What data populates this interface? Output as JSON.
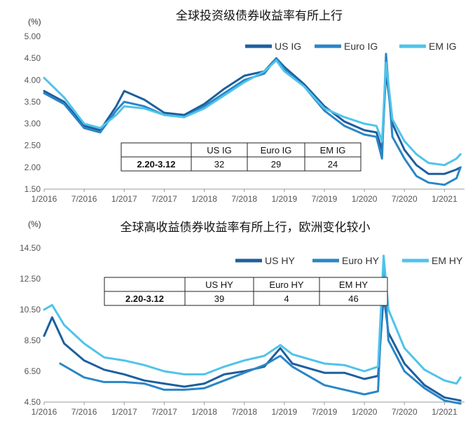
{
  "chart_data": [
    {
      "type": "line",
      "title": "全球投资级债券收益率有所上行",
      "unit_label": "(%)",
      "xlabel": "",
      "ylabel": "",
      "x_ticks": [
        "1/2016",
        "7/2016",
        "1/2017",
        "7/2017",
        "1/2018",
        "7/2018",
        "1/2019",
        "7/2019",
        "1/2020",
        "7/2020",
        "1/2021"
      ],
      "y_ticks": [
        "5.00",
        "4.50",
        "4.00",
        "3.50",
        "3.00",
        "2.50",
        "2.00",
        "1.50"
      ],
      "ylim": [
        1.5,
        5.0
      ],
      "legend_position": "top-right",
      "colors": {
        "US IG": "#1d5f9e",
        "Euro IG": "#2a86c6",
        "EM IG": "#4fc3ea"
      },
      "series": [
        {
          "name": "US IG",
          "values": [
            [
              2016.0,
              3.75
            ],
            [
              2016.25,
              3.5
            ],
            [
              2016.5,
              2.95
            ],
            [
              2016.7,
              2.85
            ],
            [
              2016.9,
              3.4
            ],
            [
              2017.0,
              3.75
            ],
            [
              2017.25,
              3.55
            ],
            [
              2017.5,
              3.25
            ],
            [
              2017.75,
              3.2
            ],
            [
              2018.0,
              3.45
            ],
            [
              2018.25,
              3.8
            ],
            [
              2018.5,
              4.1
            ],
            [
              2018.75,
              4.2
            ],
            [
              2018.9,
              4.5
            ],
            [
              2019.0,
              4.3
            ],
            [
              2019.25,
              3.9
            ],
            [
              2019.5,
              3.4
            ],
            [
              2019.75,
              3.05
            ],
            [
              2020.0,
              2.85
            ],
            [
              2020.15,
              2.8
            ],
            [
              2020.22,
              2.4
            ],
            [
              2020.27,
              4.2
            ],
            [
              2020.35,
              3.0
            ],
            [
              2020.5,
              2.4
            ],
            [
              2020.65,
              2.05
            ],
            [
              2020.8,
              1.85
            ],
            [
              2021.0,
              1.85
            ],
            [
              2021.15,
              1.95
            ],
            [
              2021.2,
              2.0
            ]
          ]
        },
        {
          "name": "Euro IG",
          "values": [
            [
              2016.0,
              3.7
            ],
            [
              2016.25,
              3.45
            ],
            [
              2016.5,
              2.9
            ],
            [
              2016.7,
              2.8
            ],
            [
              2016.9,
              3.3
            ],
            [
              2017.0,
              3.5
            ],
            [
              2017.25,
              3.4
            ],
            [
              2017.5,
              3.2
            ],
            [
              2017.75,
              3.15
            ],
            [
              2018.0,
              3.4
            ],
            [
              2018.25,
              3.7
            ],
            [
              2018.5,
              4.0
            ],
            [
              2018.75,
              4.15
            ],
            [
              2018.9,
              4.5
            ],
            [
              2019.0,
              4.25
            ],
            [
              2019.25,
              3.85
            ],
            [
              2019.5,
              3.3
            ],
            [
              2019.75,
              2.95
            ],
            [
              2020.0,
              2.75
            ],
            [
              2020.15,
              2.7
            ],
            [
              2020.22,
              2.2
            ],
            [
              2020.27,
              4.6
            ],
            [
              2020.35,
              2.7
            ],
            [
              2020.5,
              2.2
            ],
            [
              2020.65,
              1.8
            ],
            [
              2020.8,
              1.65
            ],
            [
              2021.0,
              1.6
            ],
            [
              2021.15,
              1.75
            ],
            [
              2021.2,
              2.0
            ]
          ]
        },
        {
          "name": "EM IG",
          "values": [
            [
              2016.0,
              4.05
            ],
            [
              2016.25,
              3.6
            ],
            [
              2016.5,
              3.0
            ],
            [
              2016.7,
              2.9
            ],
            [
              2016.9,
              3.2
            ],
            [
              2017.0,
              3.4
            ],
            [
              2017.25,
              3.35
            ],
            [
              2017.5,
              3.2
            ],
            [
              2017.75,
              3.15
            ],
            [
              2018.0,
              3.35
            ],
            [
              2018.25,
              3.65
            ],
            [
              2018.5,
              3.95
            ],
            [
              2018.75,
              4.2
            ],
            [
              2018.9,
              4.45
            ],
            [
              2019.0,
              4.2
            ],
            [
              2019.25,
              3.85
            ],
            [
              2019.5,
              3.35
            ],
            [
              2019.75,
              3.15
            ],
            [
              2020.0,
              3.0
            ],
            [
              2020.15,
              2.95
            ],
            [
              2020.22,
              2.6
            ],
            [
              2020.27,
              4.4
            ],
            [
              2020.35,
              3.1
            ],
            [
              2020.5,
              2.6
            ],
            [
              2020.65,
              2.3
            ],
            [
              2020.8,
              2.1
            ],
            [
              2021.0,
              2.05
            ],
            [
              2021.15,
              2.2
            ],
            [
              2021.2,
              2.3
            ]
          ]
        }
      ],
      "table": {
        "header": [
          "",
          "US IG",
          "Euro IG",
          "EM IG"
        ],
        "row": [
          "2.20-3.12",
          "32",
          "29",
          "24"
        ]
      }
    },
    {
      "type": "line",
      "title": "全球高收益债券收益率有所上行，欧洲变化较小",
      "unit_label": "(%)",
      "xlabel": "",
      "ylabel": "",
      "x_ticks": [
        "1/2016",
        "7/2016",
        "1/2017",
        "7/2017",
        "1/2018",
        "7/2018",
        "1/2019",
        "7/2019",
        "1/2020",
        "7/2020",
        "1/2021"
      ],
      "y_ticks": [
        "14.50",
        "12.50",
        "10.50",
        "8.50",
        "6.50",
        "4.50"
      ],
      "ylim": [
        4.5,
        14.5
      ],
      "legend_position": "top-right",
      "colors": {
        "US HY": "#1d5f9e",
        "Euro HY": "#2a86c6",
        "EM HY": "#4fc3ea"
      },
      "series": [
        {
          "name": "US HY",
          "values": [
            [
              2016.0,
              8.8
            ],
            [
              2016.1,
              10.0
            ],
            [
              2016.25,
              8.3
            ],
            [
              2016.5,
              7.2
            ],
            [
              2016.75,
              6.6
            ],
            [
              2017.0,
              6.3
            ],
            [
              2017.25,
              5.9
            ],
            [
              2017.5,
              5.7
            ],
            [
              2017.75,
              5.5
            ],
            [
              2018.0,
              5.7
            ],
            [
              2018.25,
              6.3
            ],
            [
              2018.5,
              6.5
            ],
            [
              2018.75,
              6.8
            ],
            [
              2018.95,
              8.0
            ],
            [
              2019.1,
              7.0
            ],
            [
              2019.5,
              6.4
            ],
            [
              2019.75,
              6.4
            ],
            [
              2020.0,
              6.0
            ],
            [
              2020.17,
              6.2
            ],
            [
              2020.24,
              11.5
            ],
            [
              2020.3,
              9.0
            ],
            [
              2020.5,
              7.0
            ],
            [
              2020.75,
              5.6
            ],
            [
              2021.0,
              4.8
            ],
            [
              2021.2,
              4.6
            ]
          ]
        },
        {
          "name": "Euro HY",
          "values": [
            [
              2016.2,
              7.0
            ],
            [
              2016.5,
              6.1
            ],
            [
              2016.75,
              5.8
            ],
            [
              2017.0,
              5.8
            ],
            [
              2017.25,
              5.7
            ],
            [
              2017.5,
              5.3
            ],
            [
              2017.75,
              5.3
            ],
            [
              2018.0,
              5.4
            ],
            [
              2018.25,
              5.9
            ],
            [
              2018.5,
              6.4
            ],
            [
              2018.75,
              6.9
            ],
            [
              2018.95,
              7.5
            ],
            [
              2019.1,
              6.8
            ],
            [
              2019.5,
              5.6
            ],
            [
              2019.75,
              5.3
            ],
            [
              2020.0,
              5.0
            ],
            [
              2020.17,
              5.2
            ],
            [
              2020.24,
              13.5
            ],
            [
              2020.3,
              8.5
            ],
            [
              2020.5,
              6.5
            ],
            [
              2020.75,
              5.4
            ],
            [
              2021.0,
              4.6
            ],
            [
              2021.2,
              4.4
            ]
          ]
        },
        {
          "name": "EM HY",
          "values": [
            [
              2016.0,
              10.5
            ],
            [
              2016.1,
              10.8
            ],
            [
              2016.25,
              9.5
            ],
            [
              2016.5,
              8.3
            ],
            [
              2016.75,
              7.4
            ],
            [
              2017.0,
              7.2
            ],
            [
              2017.25,
              6.9
            ],
            [
              2017.5,
              6.5
            ],
            [
              2017.75,
              6.3
            ],
            [
              2018.0,
              6.3
            ],
            [
              2018.25,
              6.8
            ],
            [
              2018.5,
              7.2
            ],
            [
              2018.75,
              7.5
            ],
            [
              2018.95,
              8.2
            ],
            [
              2019.1,
              7.6
            ],
            [
              2019.5,
              7.0
            ],
            [
              2019.75,
              6.9
            ],
            [
              2020.0,
              6.5
            ],
            [
              2020.17,
              6.8
            ],
            [
              2020.24,
              14.0
            ],
            [
              2020.3,
              10.5
            ],
            [
              2020.5,
              8.0
            ],
            [
              2020.75,
              6.6
            ],
            [
              2021.0,
              5.9
            ],
            [
              2021.15,
              5.7
            ],
            [
              2021.2,
              6.1
            ]
          ]
        }
      ],
      "table": {
        "header": [
          "",
          "US HY",
          "Euro HY",
          "EM HY"
        ],
        "row": [
          "2.20-3.12",
          "39",
          "4",
          "46"
        ]
      }
    }
  ]
}
